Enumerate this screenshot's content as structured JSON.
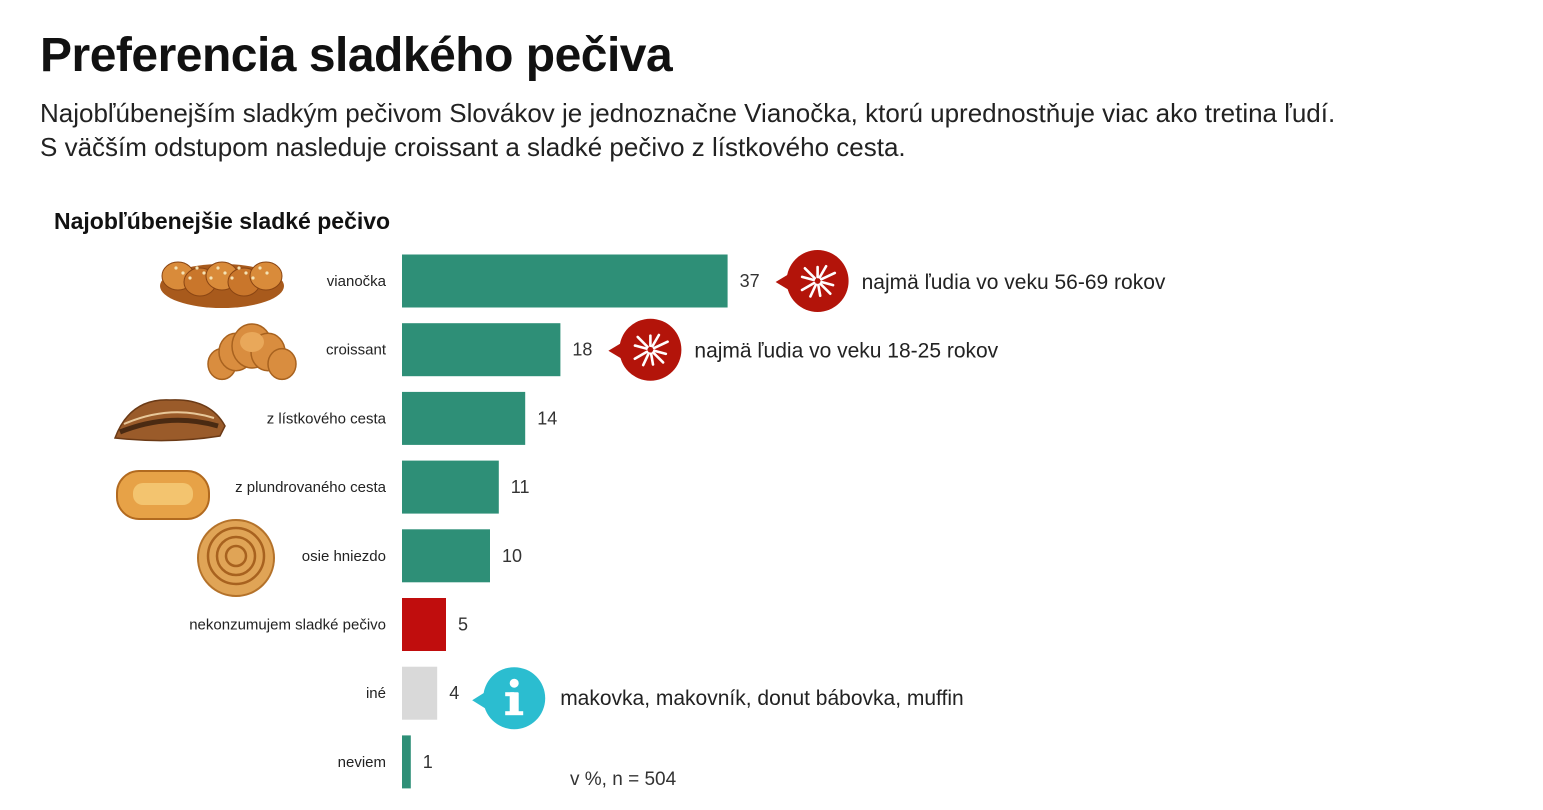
{
  "title": "Preferencia sladkého pečiva",
  "subtitle_line1": "Najobľúbenejším sladkým pečivom Slovákov je jednoznačne Vianočka, ktorú uprednostňuje viac ako tretina ľudí.",
  "subtitle_line2": "S väčším odstupom nasleduje croissant a sladké pečivo z lístkového cesta.",
  "footnote": "v %, n = 504",
  "colors": {
    "bar_main": "#2e8f77",
    "bar_none": "#c00d0d",
    "bar_other": "#d9d9d9",
    "callout_red": "#b3140a",
    "callout_info": "#2bbdd0"
  },
  "chart_data": {
    "type": "bar",
    "orientation": "horizontal",
    "title": "Najobľúbenejšie sladké pečivo",
    "categories": [
      "vianočka",
      "croissant",
      "z lístkového cesta",
      "z plundrovaného cesta",
      "osie hniezdo",
      "nekonzumujem sladké pečivo",
      "iné",
      "neviem"
    ],
    "values": [
      37,
      18,
      14,
      11,
      10,
      5,
      4,
      1
    ],
    "bar_colors": [
      "main",
      "main",
      "main",
      "main",
      "main",
      "none",
      "other",
      "main"
    ],
    "images": [
      "braided-bread",
      "croissant",
      "strudel",
      "danish-pastry",
      "pastry-swirl",
      null,
      null,
      null
    ],
    "unit": "%",
    "annotations": [
      {
        "category": "vianočka",
        "icon": "burst-icon",
        "text": "najmä ľudia vo veku 56-69 rokov"
      },
      {
        "category": "croissant",
        "icon": "burst-icon",
        "text": "najmä ľudia vo veku 18-25 rokov"
      },
      {
        "category": "iné",
        "icon": "info-icon",
        "text": "makovka, makovník, donut bábovka, muffin"
      }
    ]
  }
}
